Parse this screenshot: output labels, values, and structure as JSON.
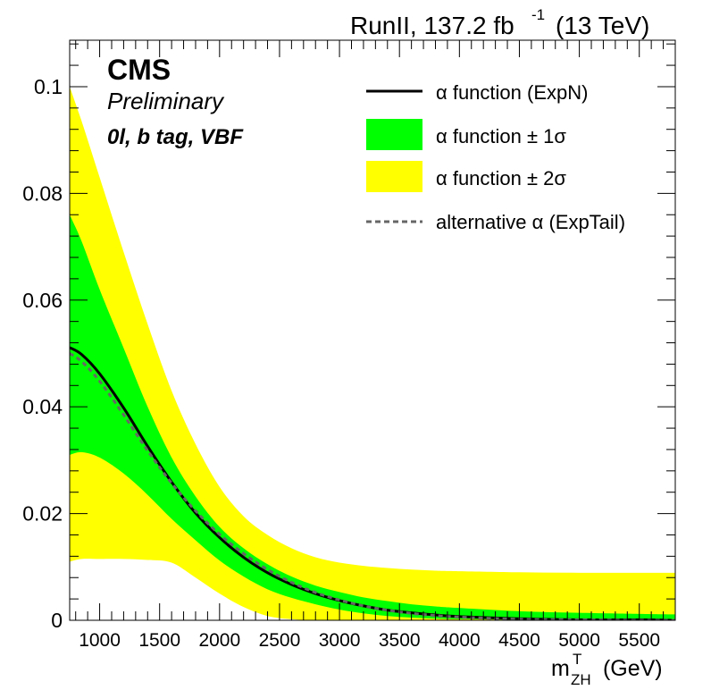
{
  "chart_data": {
    "type": "area",
    "header": {
      "lumi": "RunII, 137.2 fb",
      "lumi_exp": "-1",
      "energy": "(13 TeV)"
    },
    "cms_label": "CMS",
    "preliminary": "Preliminary",
    "category": "0l, b tag, VBF",
    "xlabel": {
      "main": "m",
      "sup": "T",
      "sub": "ZH",
      "unit": " (GeV)"
    },
    "xlim": [
      750,
      5800
    ],
    "ylim": [
      0,
      0.1087
    ],
    "xticks": [
      1000,
      1500,
      2000,
      2500,
      3000,
      3500,
      4000,
      4500,
      5000,
      5500
    ],
    "xtick_labels": [
      "1000",
      "1500",
      "2000",
      "2500",
      "3000",
      "3500",
      "4000",
      "4500",
      "5000",
      "5500"
    ],
    "yticks": [
      0,
      0.02,
      0.04,
      0.06,
      0.08,
      0.1
    ],
    "ytick_labels": [
      "0",
      "0.02",
      "0.04",
      "0.06",
      "0.08",
      "0.1"
    ],
    "x": [
      750,
      850,
      1000,
      1200,
      1400,
      1600,
      1800,
      2000,
      2200,
      2400,
      2600,
      2800,
      3000,
      3200,
      3400,
      3600,
      3800,
      4000,
      4500,
      5000,
      5500,
      5800
    ],
    "series": [
      {
        "name": "α function (ExpN)",
        "color": "#000000",
        "values": [
          0.0511,
          0.0498,
          0.0462,
          0.0398,
          0.0326,
          0.0259,
          0.0201,
          0.0155,
          0.0118,
          0.0089,
          0.0067,
          0.005,
          0.0037,
          0.0027,
          0.0019,
          0.0014,
          0.001,
          0.0007,
          0.0003,
          0.0001,
          0.0001,
          0.0
        ]
      },
      {
        "name": "alternative α (ExpTail)",
        "color": "#666666",
        "style": "dashed",
        "values": [
          0.05,
          0.0485,
          0.0448,
          0.0385,
          0.0318,
          0.0257,
          0.0205,
          0.0161,
          0.0125,
          0.0095,
          0.0071,
          0.0052,
          0.0038,
          0.0027,
          0.0019,
          0.0013,
          0.0009,
          0.0006,
          0.0002,
          0.0001,
          0.0,
          0.0
        ]
      }
    ],
    "bands": [
      {
        "name": "α function ± 2σ",
        "color": "#ffff00",
        "upper": [
          0.1,
          0.0935,
          0.083,
          0.069,
          0.0555,
          0.043,
          0.033,
          0.025,
          0.0195,
          0.016,
          0.0135,
          0.0118,
          0.0108,
          0.0102,
          0.0098,
          0.0095,
          0.0093,
          0.0092,
          0.009,
          0.0089,
          0.0089,
          0.0089
        ],
        "lower": [
          0.011,
          0.0115,
          0.0115,
          0.0115,
          0.0113,
          0.0108,
          0.008,
          0.005,
          0.0025,
          0.0008,
          0.0002,
          0.0,
          0.0,
          0.0,
          0.0,
          0.0,
          0.0,
          0.0,
          0.0,
          0.0,
          0.0,
          0.0
        ]
      },
      {
        "name": "α function ± 1σ",
        "color": "#00ff00",
        "upper": [
          0.076,
          0.071,
          0.062,
          0.051,
          0.04,
          0.0305,
          0.0232,
          0.0175,
          0.0135,
          0.0105,
          0.0082,
          0.0065,
          0.0053,
          0.0043,
          0.0036,
          0.003,
          0.0026,
          0.0023,
          0.0017,
          0.0014,
          0.0012,
          0.0011
        ],
        "lower": [
          0.031,
          0.0315,
          0.0305,
          0.0275,
          0.0235,
          0.019,
          0.015,
          0.0112,
          0.0082,
          0.0058,
          0.0042,
          0.003,
          0.002,
          0.0013,
          0.0008,
          0.0005,
          0.0003,
          0.0002,
          0.0001,
          0.0,
          0.0,
          0.0
        ]
      }
    ],
    "legend": [
      {
        "label": "α function (ExpN)",
        "kind": "line",
        "color": "#000000"
      },
      {
        "label": "α function ± 1σ",
        "kind": "box",
        "color": "#00ff00"
      },
      {
        "label": "α function ± 2σ",
        "kind": "box",
        "color": "#ffff00"
      },
      {
        "label": "alternative α (ExpTail)",
        "kind": "dashed",
        "color": "#666666"
      }
    ],
    "legend_position": "top-right"
  }
}
